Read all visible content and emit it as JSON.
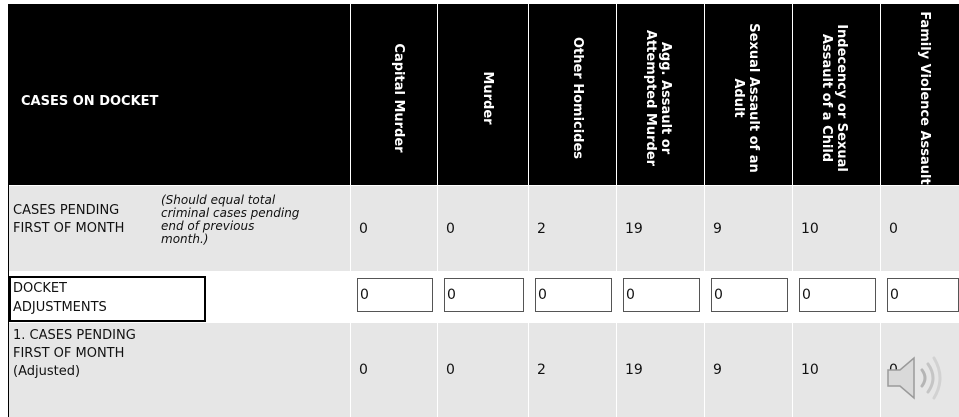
{
  "header": {
    "title": "CASES ON DOCKET",
    "columns": [
      "Capital Murder",
      "Murder",
      "Other Homicides",
      "Agg. Assault or Attempted Murder",
      "Sexual Assault of an Adult",
      "Indecency or Sexual Assault of a Child",
      "Family Violence Assault"
    ]
  },
  "rows": {
    "pending": {
      "label": "CASES PENDING FIRST OF MONTH",
      "note": "(Should equal total criminal cases pending end of previous month.)",
      "values": [
        "0",
        "0",
        "2",
        "19",
        "9",
        "10",
        "0"
      ]
    },
    "adjustments": {
      "label": "DOCKET ADJUSTMENTS",
      "values": [
        "0",
        "0",
        "0",
        "0",
        "0",
        "0",
        "0"
      ]
    },
    "adjusted": {
      "label": "1. CASES PENDING FIRST OF MONTH (Adjusted)",
      "values": [
        "0",
        "0",
        "2",
        "19",
        "9",
        "10",
        "0"
      ]
    }
  },
  "icons": {
    "speaker": "speaker-icon"
  }
}
